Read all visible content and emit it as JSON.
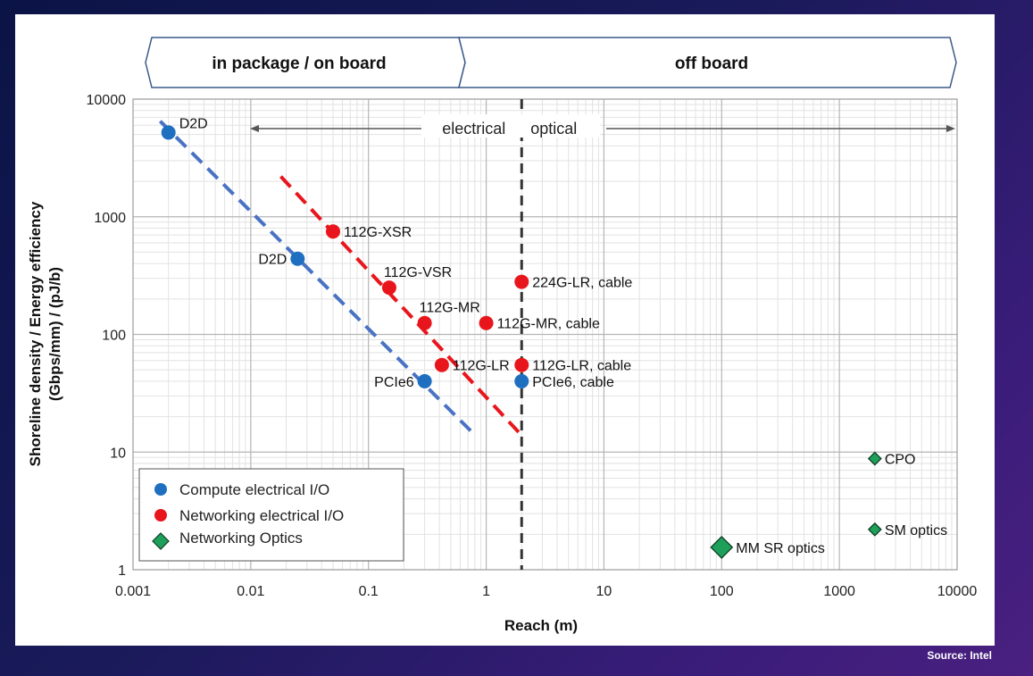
{
  "banner": {
    "left_label": "in package / on board",
    "right_label": "off board"
  },
  "source": "Source: Intel",
  "chart_data": {
    "type": "scatter",
    "title": "",
    "xlabel": "Reach (m)",
    "ylabel": [
      "Shoreline density / Energy efficiency",
      "(Gbps/mm) / (pJ/b)"
    ],
    "xscale": "log",
    "yscale": "log",
    "xlim": [
      0.001,
      10000
    ],
    "ylim": [
      1,
      10000
    ],
    "xticks": [
      {
        "v": 0.001,
        "label": "0.001"
      },
      {
        "v": 0.01,
        "label": "0.01"
      },
      {
        "v": 0.1,
        "label": "0.1"
      },
      {
        "v": 1,
        "label": "1"
      },
      {
        "v": 10,
        "label": "10"
      },
      {
        "v": 100,
        "label": "100"
      },
      {
        "v": 1000,
        "label": "1000"
      },
      {
        "v": 10000,
        "label": "10000"
      }
    ],
    "yticks": [
      {
        "v": 1,
        "label": "1"
      },
      {
        "v": 10,
        "label": "10"
      },
      {
        "v": 100,
        "label": "100"
      },
      {
        "v": 1000,
        "label": "1000"
      },
      {
        "v": 10000,
        "label": "10000"
      }
    ],
    "divider": {
      "x": 2,
      "left_label": "electrical",
      "right_label": "optical"
    },
    "series": [
      {
        "name": "Compute electrical I/O",
        "color": "#1f6fc0",
        "marker": "circle",
        "points": [
          {
            "x": 0.002,
            "y": 5200,
            "label": "D2D",
            "pos": "right"
          },
          {
            "x": 0.025,
            "y": 440,
            "label": "D2D",
            "pos": "left"
          },
          {
            "x": 0.3,
            "y": 40,
            "label": "PCIe6",
            "pos": "left"
          },
          {
            "x": 2,
            "y": 40,
            "label": "PCIe6, cable",
            "pos": "right"
          }
        ]
      },
      {
        "name": "Networking electrical I/O",
        "color": "#e8161c",
        "marker": "circle",
        "points": [
          {
            "x": 0.05,
            "y": 750,
            "label": "112G-XSR",
            "pos": "right"
          },
          {
            "x": 0.15,
            "y": 250,
            "label": "112G-VSR",
            "pos": "above"
          },
          {
            "x": 0.3,
            "y": 125,
            "label": "112G-MR",
            "pos": "above"
          },
          {
            "x": 0.42,
            "y": 55,
            "label": "112G-LR",
            "pos": "right"
          },
          {
            "x": 1,
            "y": 125,
            "label": "112G-MR, cable",
            "pos": "right"
          },
          {
            "x": 2,
            "y": 280,
            "label": "224G-LR, cable",
            "pos": "right"
          },
          {
            "x": 2,
            "y": 55,
            "label": "112G-LR, cable",
            "pos": "right"
          }
        ]
      },
      {
        "name": "Networking Optics",
        "color": "#1fa05a",
        "marker": "diamond",
        "points": [
          {
            "x": 2000,
            "y": 8.8,
            "label": "CPO",
            "pos": "right",
            "size": "small"
          },
          {
            "x": 2000,
            "y": 2.2,
            "label": "SM optics",
            "pos": "right",
            "size": "small"
          },
          {
            "x": 100,
            "y": 1.55,
            "label": "MM SR optics",
            "pos": "right",
            "size": "large"
          }
        ]
      }
    ],
    "trendlines": [
      {
        "name": "compute-trend",
        "color": "#4a72c4",
        "from": {
          "x": 0.0017,
          "y": 6500
        },
        "to": {
          "x": 0.8,
          "y": 14
        }
      },
      {
        "name": "networking-trend",
        "color": "#e8161c",
        "from": {
          "x": 0.018,
          "y": 2200
        },
        "to": {
          "x": 2.05,
          "y": 13.5
        }
      }
    ],
    "legend": {
      "position": "bottom-left"
    }
  }
}
